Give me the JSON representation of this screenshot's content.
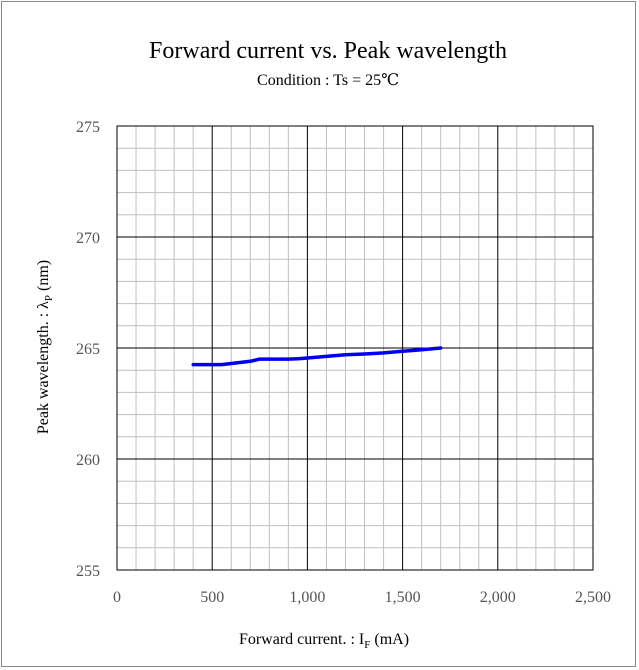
{
  "chart_data": {
    "type": "line",
    "title": "Forward current vs. Peak wavelength",
    "subtitle": "Condition : Ts = 25℃",
    "xlabel": {
      "main": "Forward current. : I",
      "sub": "F",
      "suffix": " (mA)"
    },
    "ylabel": {
      "main": "Peak wavelength. : λ",
      "sub": "P",
      "suffix": " (nm)"
    },
    "xlim": [
      0,
      2500
    ],
    "ylim": [
      255,
      275
    ],
    "x_major_step": 500,
    "x_minor_step": 100,
    "y_major_step": 5,
    "y_minor_step": 1,
    "x_tick_labels": [
      "0",
      "500",
      "1,000",
      "1,500",
      "2,000",
      "2,500"
    ],
    "y_tick_labels": [
      "255",
      "260",
      "265",
      "270",
      "275"
    ],
    "grid": true,
    "series": [
      {
        "color": "#0000ee",
        "x": [
          400,
          450,
          500,
          550,
          600,
          650,
          700,
          750,
          800,
          850,
          900,
          950,
          1000,
          1100,
          1200,
          1300,
          1400,
          1500,
          1600,
          1700
        ],
        "y": [
          264.25,
          264.25,
          264.25,
          264.25,
          264.3,
          264.35,
          264.4,
          264.5,
          264.5,
          264.5,
          264.5,
          264.52,
          264.55,
          264.62,
          264.7,
          264.73,
          264.78,
          264.85,
          264.92,
          265.0
        ]
      }
    ]
  }
}
